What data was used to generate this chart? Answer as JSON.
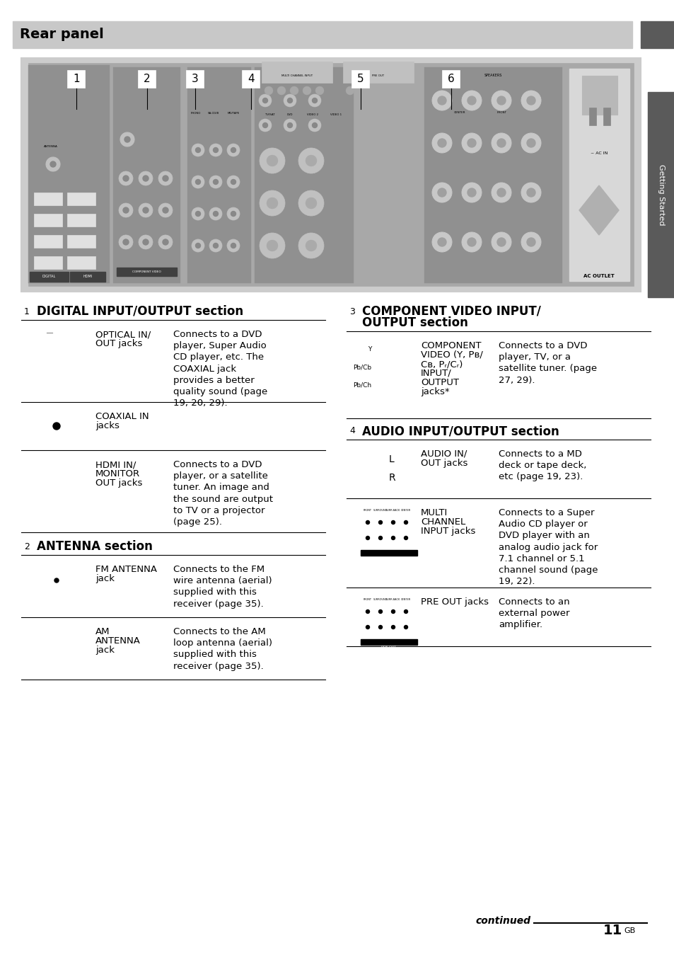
{
  "title": "Rear panel",
  "title_bg": "#c8c8c8",
  "title_color": "#000000",
  "side_tab_color": "#5a5a5a",
  "side_tab_text": "Getting Started",
  "page_bg": "#ffffff",
  "panel_bg": "#b8b8b8",
  "panel_inner_bg": "#a0a0a0",
  "footer_continued": "continued",
  "footer_page": "11",
  "footer_suffix": "GB"
}
